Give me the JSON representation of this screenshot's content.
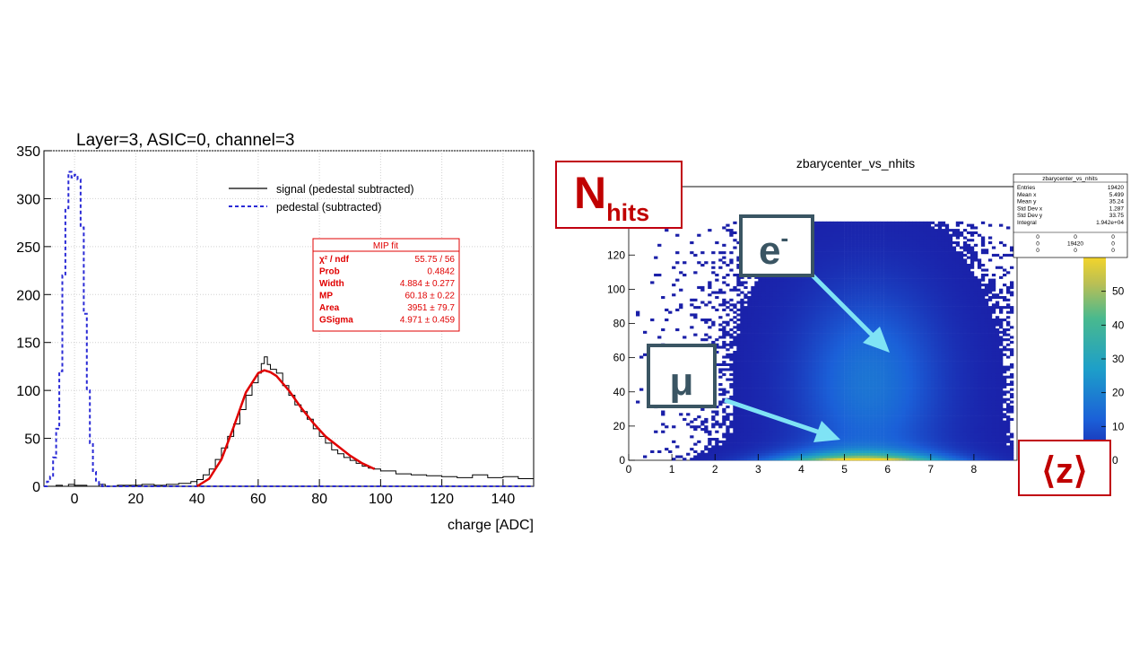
{
  "chart_data": [
    {
      "type": "line",
      "title": "Layer=3, ASIC=0, channel=3",
      "xlabel": "charge [ADC]",
      "ylabel": "",
      "xlim": [
        -10,
        150
      ],
      "ylim": [
        0,
        350
      ],
      "x_ticks": [
        "0",
        "20",
        "40",
        "60",
        "80",
        "100",
        "120",
        "140"
      ],
      "y_ticks": [
        "0",
        "50",
        "100",
        "150",
        "200",
        "250",
        "300",
        "350"
      ],
      "grid": true,
      "legend_position": "top-right",
      "series": [
        {
          "name": "signal (pedestal subtracted)",
          "style": "solid-step",
          "color": "#000000",
          "x": [
            -10,
            -8,
            -6,
            -4,
            -2,
            0,
            2,
            4,
            6,
            8,
            10,
            14,
            18,
            22,
            26,
            30,
            34,
            38,
            40,
            42,
            44,
            46,
            48,
            50,
            52,
            54,
            56,
            58,
            60,
            61,
            62,
            63,
            64,
            66,
            68,
            70,
            72,
            74,
            76,
            78,
            80,
            82,
            84,
            86,
            88,
            90,
            92,
            94,
            96,
            98,
            100,
            105,
            110,
            115,
            120,
            125,
            130,
            135,
            140,
            145,
            150
          ],
          "values": [
            0,
            0,
            1,
            0,
            2,
            1,
            1,
            0,
            0,
            2,
            0,
            1,
            1,
            2,
            1,
            2,
            3,
            5,
            7,
            12,
            18,
            28,
            40,
            52,
            65,
            80,
            95,
            108,
            118,
            128,
            135,
            127,
            122,
            118,
            105,
            95,
            85,
            78,
            70,
            60,
            52,
            45,
            38,
            34,
            30,
            27,
            24,
            21,
            19,
            18,
            16,
            13,
            12,
            11,
            10,
            9,
            12,
            9,
            10,
            8,
            7
          ]
        },
        {
          "name": "pedestal (subtracted)",
          "style": "dashed-step",
          "color": "#2b2bd6",
          "x": [
            -10,
            -9,
            -8,
            -7,
            -6,
            -5,
            -4,
            -3,
            -2,
            -1,
            0,
            1,
            2,
            3,
            4,
            5,
            6,
            7,
            8,
            9,
            10
          ],
          "values": [
            0,
            5,
            10,
            30,
            60,
            120,
            220,
            290,
            328,
            322,
            325,
            320,
            270,
            180,
            100,
            45,
            15,
            6,
            2,
            0,
            0
          ]
        },
        {
          "name": "",
          "style": "fit",
          "color": "#e00000",
          "x": [
            40,
            44,
            48,
            52,
            56,
            60,
            62,
            64,
            66,
            70,
            74,
            78,
            82,
            86,
            90,
            94,
            98
          ],
          "values": [
            0,
            8,
            28,
            62,
            98,
            118,
            121,
            119,
            115,
            100,
            82,
            66,
            52,
            42,
            32,
            24,
            18
          ]
        }
      ],
      "fit_box": {
        "title": "MIP fit",
        "rows": [
          {
            "label": "χ² / ndf",
            "value": "55.75 / 56"
          },
          {
            "label": "Prob",
            "value": "0.4842"
          },
          {
            "label": "Width",
            "value": "4.884 ± 0.277"
          },
          {
            "label": "MP",
            "value": "60.18 ± 0.22"
          },
          {
            "label": "Area",
            "value": "3951 ± 79.7"
          },
          {
            "label": "GSigma",
            "value": "4.971 ± 0.459"
          }
        ]
      }
    },
    {
      "type": "heatmap",
      "title": "zbarycenter_vs_nhits",
      "xlabel": "",
      "ylabel": "",
      "xlim": [
        0,
        9
      ],
      "ylim": [
        0,
        160
      ],
      "x_ticks": [
        "0",
        "1",
        "2",
        "3",
        "4",
        "5",
        "6",
        "7",
        "8"
      ],
      "y_ticks": [
        "0",
        "20",
        "40",
        "60",
        "80",
        "100",
        "120",
        "140"
      ],
      "colorbar_ticks": [
        "0",
        "10",
        "20",
        "30",
        "40",
        "50"
      ],
      "colorbar_range": [
        0,
        60
      ],
      "stats_box": {
        "title": "zbarycenter_vs_nhits",
        "rows": [
          {
            "label": "Entries",
            "value": "19420"
          },
          {
            "label": "Mean x",
            "value": "5.499"
          },
          {
            "label": "Mean y",
            "value": "35.24"
          },
          {
            "label": "Std Dev x",
            "value": "1.287"
          },
          {
            "label": "Std Dev y",
            "value": "33.75"
          },
          {
            "label": "Integral",
            "value": "1.942e+04"
          }
        ],
        "grid": [
          [
            "0",
            "0",
            "0"
          ],
          [
            "0",
            "19420",
            "0"
          ],
          [
            "0",
            "0",
            "0"
          ]
        ]
      }
    }
  ],
  "annotations": {
    "nhits_main": "N",
    "nhits_sub": "hits",
    "electron_main": "e",
    "electron_sup": "-",
    "muon": "μ",
    "zbar": "⟨z⟩"
  },
  "colors": {
    "signal": "#000000",
    "pedestal": "#2b2bd6",
    "fit": "#e00000",
    "arrow": "#7fe3f5",
    "label_red": "#c00000",
    "label_dark": "#3a5563"
  }
}
